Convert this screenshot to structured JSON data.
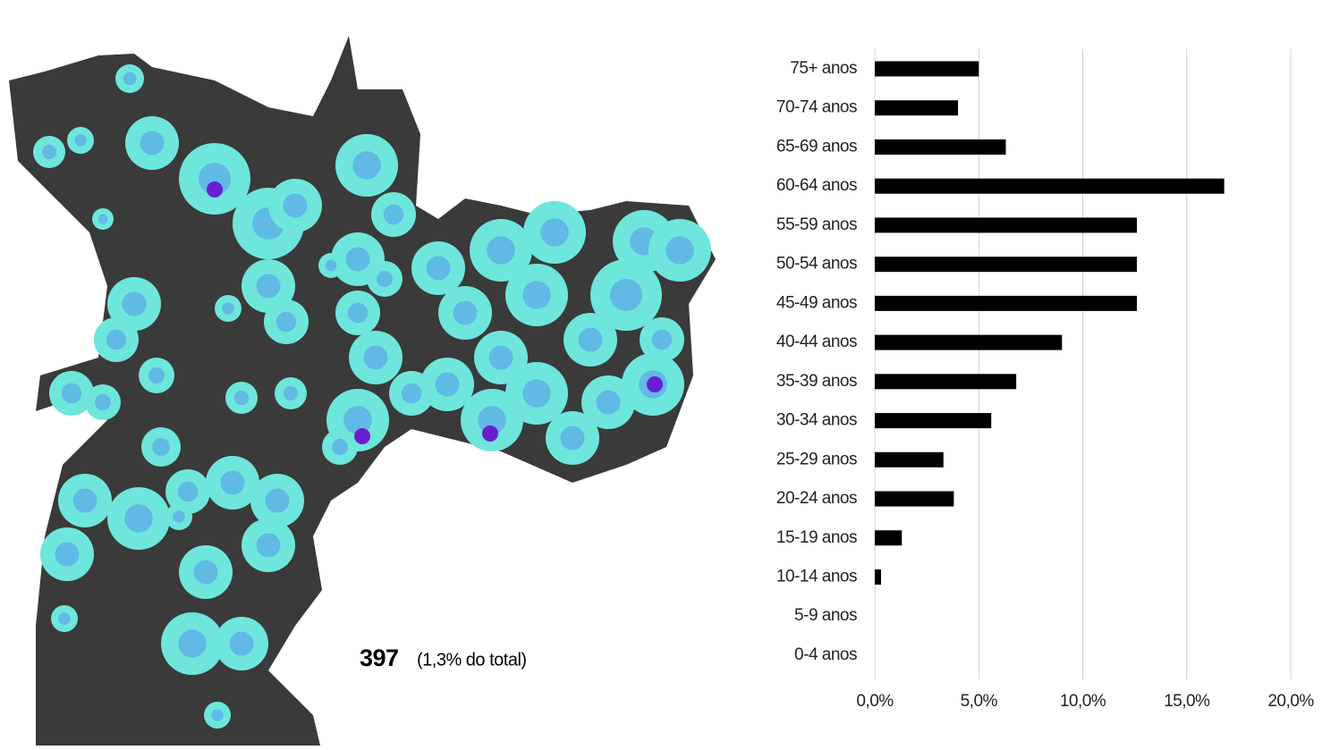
{
  "map": {
    "count": "397",
    "note": "(1,3% do total)"
  },
  "chart_data": {
    "type": "hbar",
    "categories": [
      "75+ anos",
      "70-74 anos",
      "65-69 anos",
      "60-64 anos",
      "55-59 anos",
      "50-54 anos",
      "45-49 anos",
      "40-44 anos",
      "35-39 anos",
      "30-34 anos",
      "25-29 anos",
      "20-24 anos",
      "15-19 anos",
      "10-14 anos",
      "5-9 anos",
      "0-4 anos"
    ],
    "values": [
      5.0,
      4.0,
      6.3,
      16.8,
      12.6,
      12.6,
      12.6,
      9.0,
      6.8,
      5.6,
      3.3,
      3.8,
      1.3,
      0.3,
      0,
      0
    ],
    "color": "#000000",
    "xlim": [
      0,
      20
    ],
    "xticks": [
      {
        "value": 0,
        "label": "0,0%"
      },
      {
        "value": 5,
        "label": "5,0%"
      },
      {
        "value": 10,
        "label": "10,0%"
      },
      {
        "value": 15,
        "label": "15,0%"
      },
      {
        "value": 20,
        "label": "20,0%"
      }
    ],
    "grid": true
  }
}
